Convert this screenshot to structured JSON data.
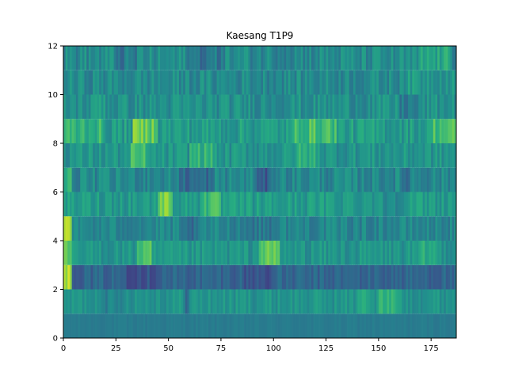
{
  "chart_data": {
    "type": "heatmap",
    "title": "Kaesang T1P9",
    "xlabel": "",
    "ylabel": "",
    "xlim": [
      0,
      187
    ],
    "ylim": [
      0,
      12
    ],
    "x_ticks": [
      0,
      25,
      50,
      75,
      100,
      125,
      150,
      175
    ],
    "y_ticks": [
      0,
      2,
      4,
      6,
      8,
      10,
      12
    ],
    "n_rows": 12,
    "n_cols": 187,
    "colormap": "viridis",
    "value_range": [
      0,
      1
    ],
    "grid": false,
    "rows": [
      {
        "row": 0,
        "base": 0.42,
        "variation": 0.02,
        "features": []
      },
      {
        "row": 1,
        "base": 0.52,
        "variation": 0.07,
        "features": [
          {
            "x": [
              20,
              28
            ],
            "delta": -0.08
          },
          {
            "x": [
              58,
              60
            ],
            "delta": -0.15
          },
          {
            "x": [
              140,
              145
            ],
            "delta": 0.12
          },
          {
            "x": [
              150,
              160
            ],
            "delta": 0.12
          }
        ]
      },
      {
        "row": 2,
        "base": 0.33,
        "variation": 0.07,
        "features": [
          {
            "x": [
              0,
              4
            ],
            "delta": 0.55
          },
          {
            "x": [
              30,
              45
            ],
            "delta": -0.06
          },
          {
            "x": [
              85,
              100
            ],
            "delta": -0.06
          }
        ]
      },
      {
        "row": 3,
        "base": 0.52,
        "variation": 0.08,
        "features": [
          {
            "x": [
              0,
              4
            ],
            "delta": 0.2
          },
          {
            "x": [
              35,
              42
            ],
            "delta": 0.18
          },
          {
            "x": [
              93,
              103
            ],
            "delta": 0.22
          },
          {
            "x": [
              170,
              178
            ],
            "delta": 0.08
          }
        ]
      },
      {
        "row": 4,
        "base": 0.46,
        "variation": 0.08,
        "features": [
          {
            "x": [
              0,
              4
            ],
            "delta": 0.45
          },
          {
            "x": [
              55,
              65
            ],
            "delta": -0.1
          },
          {
            "x": [
              85,
              100
            ],
            "delta": -0.05
          }
        ]
      },
      {
        "row": 5,
        "base": 0.55,
        "variation": 0.09,
        "features": [
          {
            "x": [
              45,
              52
            ],
            "delta": 0.25
          },
          {
            "x": [
              65,
              75
            ],
            "delta": 0.12
          },
          {
            "x": [
              150,
              160
            ],
            "delta": -0.05
          }
        ]
      },
      {
        "row": 6,
        "base": 0.47,
        "variation": 0.09,
        "features": [
          {
            "x": [
              0,
              4
            ],
            "delta": 0.15
          },
          {
            "x": [
              55,
              72
            ],
            "delta": -0.12
          },
          {
            "x": [
              92,
              98
            ],
            "delta": -0.2
          },
          {
            "x": [
              160,
              165
            ],
            "delta": -0.08
          }
        ]
      },
      {
        "row": 7,
        "base": 0.52,
        "variation": 0.09,
        "features": [
          {
            "x": [
              32,
              40
            ],
            "delta": 0.15
          },
          {
            "x": [
              60,
              72
            ],
            "delta": 0.12
          },
          {
            "x": [
              110,
              122
            ],
            "delta": 0.1
          }
        ]
      },
      {
        "row": 8,
        "base": 0.55,
        "variation": 0.1,
        "features": [
          {
            "x": [
              0,
              18
            ],
            "delta": 0.1
          },
          {
            "x": [
              33,
              45
            ],
            "delta": 0.22
          },
          {
            "x": [
              110,
              130
            ],
            "delta": 0.15
          },
          {
            "x": [
              175,
              187
            ],
            "delta": 0.15
          }
        ]
      },
      {
        "row": 9,
        "base": 0.5,
        "variation": 0.09,
        "features": [
          {
            "x": [
              15,
              20
            ],
            "delta": 0.08
          },
          {
            "x": [
              160,
              170
            ],
            "delta": -0.08
          }
        ]
      },
      {
        "row": 10,
        "base": 0.48,
        "variation": 0.09,
        "features": [
          {
            "x": [
              160,
              187
            ],
            "delta": 0.06
          }
        ]
      },
      {
        "row": 11,
        "base": 0.48,
        "variation": 0.1,
        "features": [
          {
            "x": [
              25,
              35
            ],
            "delta": -0.08
          },
          {
            "x": [
              60,
              75
            ],
            "delta": -0.08
          },
          {
            "x": [
              170,
              185
            ],
            "delta": 0.1
          }
        ]
      }
    ]
  }
}
